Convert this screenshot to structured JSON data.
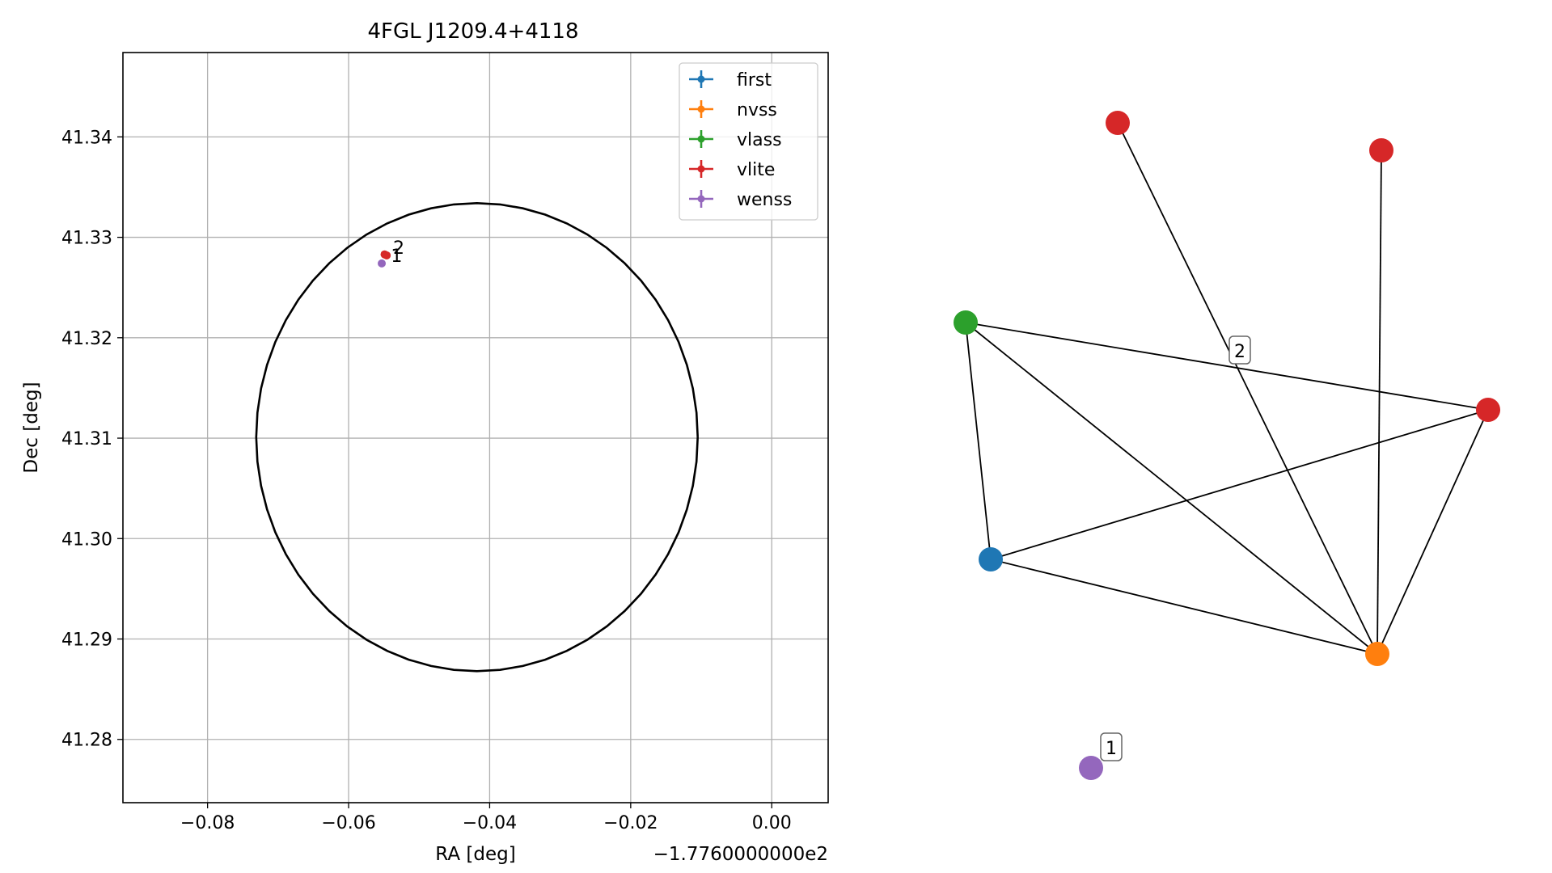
{
  "chart_data": [
    {
      "type": "scatter",
      "title": "4FGL J1209.4+4118",
      "xlabel": "RA [deg]",
      "ylabel": "Dec [deg]",
      "x_offset_label": "−1.7760000000e2",
      "grid": true,
      "legend_placement": "top-right",
      "xlim": [
        -0.092,
        0.008
      ],
      "ylim": [
        41.2737,
        41.3484
      ],
      "xticks": [
        -0.08,
        -0.06,
        -0.04,
        -0.02,
        0.0
      ],
      "xtick_labels": [
        "−0.08",
        "−0.06",
        "−0.04",
        "−0.02",
        "0.00"
      ],
      "yticks": [
        41.28,
        41.29,
        41.3,
        41.31,
        41.32,
        41.33,
        41.34
      ],
      "ytick_labels": [
        "41.28",
        "41.29",
        "41.30",
        "41.31",
        "41.32",
        "41.33",
        "41.34"
      ],
      "ellipse": {
        "center": [
          -0.0418,
          41.3101
        ],
        "ra_semi_axis": 0.0313,
        "dec_semi_axis": 0.0233,
        "color": "#000000"
      },
      "series": [
        {
          "name": "first",
          "color": "#1f77b4",
          "points": []
        },
        {
          "name": "nvss",
          "color": "#ff7f0e",
          "points": []
        },
        {
          "name": "vlass",
          "color": "#2ca02c",
          "points": []
        },
        {
          "name": "vlite",
          "color": "#d62728",
          "points": [
            [
              -0.0549,
              41.3283
            ],
            [
              -0.0546,
              41.3282
            ]
          ]
        },
        {
          "name": "wenss",
          "color": "#9467bd",
          "points": [
            [
              -0.0553,
              41.3274
            ]
          ]
        }
      ],
      "annotations": [
        {
          "text": "2",
          "x": -0.0537,
          "y": 41.329
        },
        {
          "text": "1",
          "x": -0.054,
          "y": 41.3282
        }
      ]
    },
    {
      "type": "network",
      "nodes": [
        {
          "id": "n_red_a",
          "color": "#d62728"
        },
        {
          "id": "n_red_b",
          "color": "#d62728"
        },
        {
          "id": "n_green",
          "color": "#2ca02c"
        },
        {
          "id": "n_red_c",
          "color": "#d62728"
        },
        {
          "id": "n_blue",
          "color": "#1f77b4"
        },
        {
          "id": "n_orange",
          "color": "#ff7f0e"
        },
        {
          "id": "n_purple",
          "color": "#9467bd"
        }
      ],
      "edges": [
        [
          "n_red_a",
          "n_orange"
        ],
        [
          "n_red_b",
          "n_orange"
        ],
        [
          "n_green",
          "n_red_c"
        ],
        [
          "n_green",
          "n_blue"
        ],
        [
          "n_green",
          "n_orange"
        ],
        [
          "n_blue",
          "n_red_c"
        ],
        [
          "n_blue",
          "n_orange"
        ],
        [
          "n_red_c",
          "n_orange"
        ]
      ],
      "labels": [
        {
          "text": "2",
          "node": "n_red_a"
        },
        {
          "text": "1",
          "node": "n_purple"
        }
      ]
    }
  ]
}
